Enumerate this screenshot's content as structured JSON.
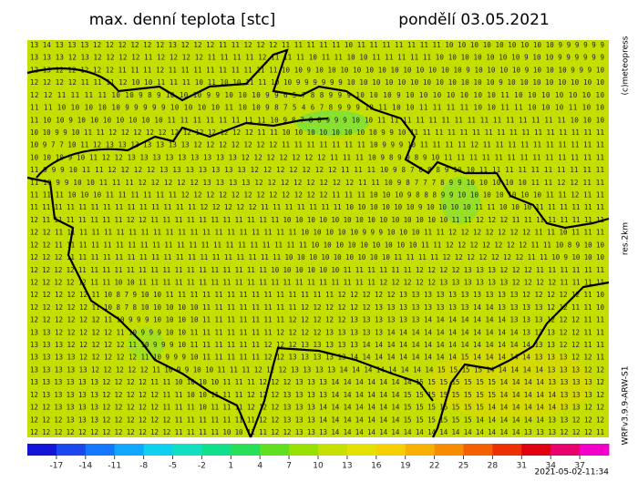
{
  "header": {
    "title": "max. denní teplota [stc]",
    "date": "pondělí 03.05.2021"
  },
  "side_labels": {
    "copyright": "(c)meteopress",
    "resolution": "res.2km",
    "model": "WRFv3.9.9-ARW-S1"
  },
  "timestamp": "2021-05-02-11:34",
  "colorbar": {
    "labels": [
      "-17",
      "-14",
      "-11",
      "-8",
      "-5",
      "-2",
      "1",
      "4",
      "7",
      "10",
      "13",
      "16",
      "19",
      "22",
      "25",
      "28",
      "31",
      "34",
      "37"
    ],
    "colors": [
      "#1414d8",
      "#1c46f0",
      "#1478ff",
      "#10a8ff",
      "#10d0f0",
      "#10e0c0",
      "#10e08c",
      "#28e058",
      "#60e020",
      "#98e000",
      "#c8e000",
      "#e4e000",
      "#f4d000",
      "#f8b000",
      "#f88c00",
      "#f46000",
      "#ec3000",
      "#e00010",
      "#e8006c",
      "#f000c8"
    ]
  },
  "grid_rows": [
    "13 14 13 13 13 12 12 12 12 12 12 13 12 12 12 11 11 12 12 12 11 11 11 11 11 10 11 11 11 11 11 11 11 10 10 10 10 10 10 10 10 10 9 9 9 9 9 9",
    "13 13 13 12 13 12 12 12 12 11 12 12 12 12 11 11 11 11 12 11 11 11 10 11 11 10 10 11 11 11 11 11 10 10 10 10 10 10 10 9 10 10 9 9 9 9 9 9",
    "12 13 12 12 12 12 12 11 11 11 12 11 11 11 11 11 11 11 11 11 10 10 9 10 10 10 10 10 10 10 10 10 10 10 10 9 10 10 10 10 9 10 10 10 9 9 9 10",
    "12 12 12 12 11 11 11 12 10 10 11 11 11 10 11 10 10 11 11 10 10 9 9 9 9 9 9 10 10 10 10 10 10 10 10 10 10 10 10 9 10 10 10 10 10 10 10 10",
    "12 12 11 11 11 11 10 10 9 8 9 10 10 10 9 9 10 10 10 9 9 6 5 7 8 8 9 9 9 10 10 10 9 10 10 10 10 10 10 10 11 10 10 10 10 10 10 10",
    "11 11 10 10 10 10 10 9 9 9 9 9 10 10 10 10 11 10 10 9 8 7 5 4 6 7 8 9 9 9 10 11 10 10 11 11 11 11 10 10 11 11 10 10 10 11 10 10",
    "11 10 10 9 10 10 10 10 10 10 10 11 11 11 11 11 11 11 11 10 9 8 7 8 8 9 9 9 10 10 11 11 11 11 11 11 11 11 11 11 11 11 11 11 11 10 10 10",
    "10 10 9 9 10 11 11 12 12 12 12 12 12 12 12 12 12 12 12 11 11 10 10 10 10 10 10 10 10 9 9 10 11 11 11 11 11 11 11 11 11 11 11 11 11 11 11 11",
    "10 9 7 7 10 11 12 13 13 13 13 13 13 13 12 12 12 12 12 12 12 11 11 11 11 11 11 11 10 9 9 9 10 11 11 11 11 12 11 11 11 11 11 11 11 11 11 11",
    "10 10 10 9 10 11 12 12 13 13 13 13 13 13 13 13 13 12 12 12 12 12 12 12 11 11 11 10 9 8 9 9 8 9 10 11 11 11 11 11 11 11 11 11 11 11 11 11",
    "11 9 9 9 10 11 11 12 12 12 12 13 13 13 13 13 13 13 12 12 12 12 12 12 12 11 11 11 10 9 8 7 6 8 8 9 10 10 11 11 11 11 11 11 11 11 11 11",
    "11 10 9 9 10 10 11 11 11 12 12 12 12 12 13 13 13 13 12 12 12 12 12 12 12 12 11 11 10 9 8 7 7 7 8 9 9 10 10 10 10 10 11 11 12 12 11 11",
    "11 11 11 10 10 10 11 11 11 11 11 11 12 12 12 12 12 12 12 12 12 12 12 12 11 11 11 10 10 10 9 8 8 8 9 9 10 10 10 10 10 10 10 11 11 12 11 11",
    "11 11 11 11 11 11 11 11 11 11 11 11 11 11 12 12 12 12 12 11 11 11 11 11 11 11 10 10 10 10 10 10 9 10 10 10 10 11 11 10 10 10 11 11 11 11 11 11",
    "12 11 11 11 11 11 11 11 12 12 11 11 11 11 11 11 11 11 11 11 11 10 10 10 10 10 10 10 10 10 10 10 10 10 10 11 11 12 12 12 11 11 11 11 11 11 11 11",
    "12 12 11 11 11 11 11 11 11 11 11 11 11 11 11 11 11 11 11 11 11 11 10 10 10 10 10 9 9 9 10 10 10 11 11 12 12 12 12 12 12 12 11 11 10 11 11 11",
    "12 12 11 11 11 11 11 11 11 11 11 11 11 11 11 11 11 11 11 11 11 11 11 10 10 10 10 10 10 10 10 10 11 11 12 12 12 12 12 12 12 11 11 10 8 9 10 10",
    "12 12 12 11 11 11 11 11 11 11 11 11 11 11 11 11 11 11 11 11 11 10 10 10 10 10 10 10 10 10 11 11 11 11 12 12 12 12 12 12 12 11 11 10 9 10 10 10",
    "12 12 12 12 11 11 11 11 11 11 11 11 11 11 11 11 11 11 11 11 10 10 10 10 10 10 11 11 11 11 11 11 12 12 12 12 13 13 13 12 12 12 11 11 11 11 11 11",
    "12 12 12 12 12 11 11 10 10 11 11 11 11 11 11 11 11 11 11 11 11 11 11 11 11 11 11 11 11 12 12 12 12 12 13 13 13 13 13 13 12 12 12 12 11 11 11 11",
    "12 12 12 12 12 11 10 8 7 9 10 10 11 11 11 11 11 11 11 11 11 11 11 11 11 11 12 12 12 12 12 13 13 13 13 13 13 13 13 13 13 12 12 12 12 12 11 10",
    "12 12 12 12 12 11 10 8 7 8 10 10 10 10 10 11 11 11 11 11 11 11 11 12 12 12 12 12 12 13 13 13 13 13 13 13 13 14 14 13 13 13 13 12 12 11 11 10",
    "12 12 12 12 12 12 11 10 9 9 9 10 10 10 10 11 11 11 11 11 11 11 12 12 12 12 12 13 13 13 13 13 13 14 14 14 14 14 14 14 13 13 13 12 12 12 11 11",
    "13 13 12 12 12 12 12 11 10 9 9 9 10 10 11 11 11 11 11 11 11 12 12 12 12 13 13 13 13 13 14 14 14 14 14 14 14 14 14 14 14 13 13 13 12 12 11 11",
    "13 13 13 12 12 12 12 12 11 10 9 9 9 10 11 11 11 11 11 11 12 12 12 13 13 13 13 13 14 14 14 14 14 14 14 14 14 14 14 14 14 14 13 13 12 12 11 11",
    "13 13 13 13 12 12 12 12 12 11 10 9 9 9 10 11 11 11 11 11 12 12 13 13 13 13 13 14 14 14 14 14 14 14 14 14 15 14 14 14 14 14 13 13 13 12 12 11",
    "13 13 13 13 13 12 12 12 12 12 11 10 9 9 10 10 11 11 11 12 12 12 13 13 13 13 14 14 14 14 14 14 14 14 15 15 15 15 14 14 14 14 14 13 13 13 12 12",
    "13 13 13 13 13 13 12 12 12 12 11 11 10 10 10 10 11 11 11 12 12 12 13 13 13 14 14 14 14 14 14 14 15 15 15 15 15 15 15 14 14 14 14 13 13 13 13 12",
    "12 13 13 13 13 13 12 12 12 12 12 11 11 10 10 11 11 11 12 12 12 13 13 13 13 14 14 14 14 14 14 15 15 15 15 15 15 15 15 14 14 14 14 14 13 13 13 12",
    "12 12 13 13 13 13 12 12 12 12 12 11 11 11 10 11 11 11 12 12 12 13 13 13 14 14 14 14 14 14 14 15 15 15 15 15 15 15 14 14 14 14 14 14 13 13 12 12",
    "12 12 12 13 13 13 12 12 12 12 12 12 11 11 11 11 11 11 11 12 12 13 13 13 14 14 14 14 14 14 14 15 15 15 15 15 15 14 14 14 14 14 14 13 13 12 12 12",
    "12 12 12 12 12 12 12 12 12 12 12 12 11 11 11 11 10 10 11 11 12 12 13 13 13 14 14 14 14 14 14 14 14 14 14 14 14 14 14 14 14 13 13 13 12 12 12 11"
  ]
}
